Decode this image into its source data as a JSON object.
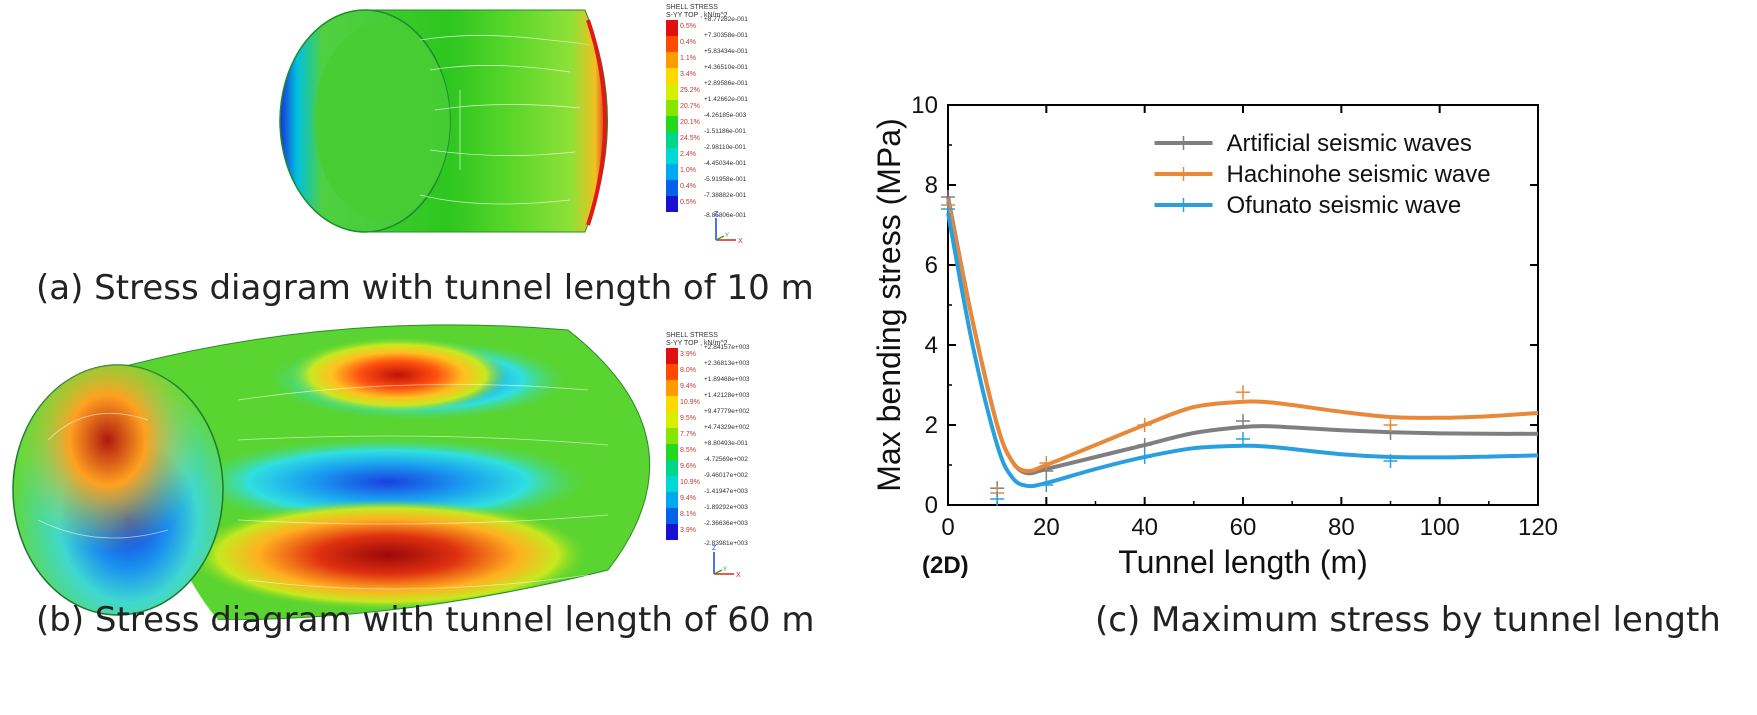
{
  "panels": {
    "a": {
      "caption": "(a) Stress diagram with tunnel length of 10 m",
      "legend": {
        "title_line1": "SHELL STRESS",
        "title_line2": "S-YY TOP , kN/m^2",
        "values": [
          "+8.77282e-001",
          "+7.30358e-001",
          "+5.83434e-001",
          "+4.36510e-001",
          "+2.89586e-001",
          "+1.42662e-001",
          "-4.26185e-003",
          "-1.51186e-001",
          "-2.98110e-001",
          "-4.45034e-001",
          "-5.91958e-001",
          "-7.38882e-001",
          "-8.85806e-001"
        ],
        "percents": [
          "0.5%",
          "0.4%",
          "1.1%",
          "3.4%",
          "25.2%",
          "20.7%",
          "20.1%",
          "24.5%",
          "2.4%",
          "1.0%",
          "0.4%",
          "0.5%"
        ],
        "axis_labels": {
          "z": "Z",
          "y": "Y",
          "x": "X"
        }
      }
    },
    "b": {
      "caption": "(b) Stress diagram with tunnel length of 60 m",
      "legend": {
        "title_line1": "SHELL STRESS",
        "title_line2": "S-YY TOP , kN/m^2",
        "values": [
          "+2.84157e+003",
          "+2.36813e+003",
          "+1.89468e+003",
          "+1.42128e+003",
          "+9.47779e+002",
          "+4.74329e+002",
          "+8.80493e-001",
          "-4.72569e+002",
          "-9.46017e+002",
          "-1.41947e+003",
          "-1.89292e+003",
          "-2.36636e+003",
          "-2.83981e+003"
        ],
        "percents": [
          "3.9%",
          "8.0%",
          "9.4%",
          "10.9%",
          "9.5%",
          "7.7%",
          "8.5%",
          "9.6%",
          "10.9%",
          "9.4%",
          "8.1%",
          "3.9%"
        ],
        "axis_labels": {
          "z": "Z",
          "y": "Y",
          "x": "X"
        }
      }
    },
    "c": {
      "caption": "(c) Maximum stress by tunnel length",
      "extra_label": "(2D)"
    }
  },
  "contour_colors": [
    "#e01010",
    "#ff4a00",
    "#ff9a00",
    "#ffd800",
    "#d8f000",
    "#86e600",
    "#24d820",
    "#00d68a",
    "#00d8d8",
    "#00a8f0",
    "#0062e8",
    "#1a10d0"
  ],
  "chart_data": {
    "type": "line",
    "xlabel": "Tunnel length (m)",
    "ylabel": "Max bending stress (MPa)",
    "xlim": [
      0,
      120
    ],
    "ylim": [
      0,
      10
    ],
    "xticks": [
      0,
      20,
      40,
      60,
      80,
      100,
      120
    ],
    "yticks": [
      0,
      2,
      4,
      6,
      8,
      10
    ],
    "grid": false,
    "legend_position": "top-right",
    "series": [
      {
        "name": "Artificial seismic waves",
        "color": "#7f7f7f",
        "markers": {
          "x": [
            0,
            10,
            20,
            40,
            60,
            90
          ],
          "y": [
            7.7,
            0.42,
            0.85,
            1.5,
            2.1,
            1.8
          ]
        },
        "curve": {
          "x": [
            0,
            5,
            10,
            13,
            16,
            20,
            30,
            40,
            50,
            60,
            65,
            70,
            80,
            90,
            100,
            110,
            120
          ],
          "y": [
            7.7,
            4.6,
            2.0,
            1.1,
            0.8,
            0.9,
            1.2,
            1.5,
            1.8,
            1.95,
            1.97,
            1.94,
            1.87,
            1.82,
            1.79,
            1.78,
            1.78
          ]
        }
      },
      {
        "name": "Hachinohe seismic wave",
        "color": "#e8893a",
        "markers": {
          "x": [
            0,
            10,
            20,
            40,
            60,
            90
          ],
          "y": [
            7.5,
            0.3,
            1.05,
            2.0,
            2.82,
            2.0
          ]
        },
        "curve": {
          "x": [
            0,
            5,
            10,
            13,
            16,
            20,
            30,
            40,
            50,
            60,
            65,
            70,
            80,
            90,
            100,
            110,
            120
          ],
          "y": [
            7.6,
            4.6,
            2.0,
            1.1,
            0.85,
            1.0,
            1.5,
            2.0,
            2.45,
            2.58,
            2.57,
            2.5,
            2.33,
            2.2,
            2.18,
            2.22,
            2.3
          ]
        }
      },
      {
        "name": "Ofunato seismic wave",
        "color": "#2a9fe0",
        "markers": {
          "x": [
            0,
            10,
            20,
            40,
            60,
            90
          ],
          "y": [
            7.4,
            0.15,
            0.5,
            1.2,
            1.65,
            1.1
          ]
        },
        "curve": {
          "x": [
            0,
            5,
            10,
            13,
            16,
            20,
            30,
            40,
            50,
            60,
            65,
            70,
            80,
            90,
            100,
            110,
            120
          ],
          "y": [
            7.3,
            4.0,
            1.5,
            0.7,
            0.48,
            0.55,
            0.9,
            1.2,
            1.42,
            1.48,
            1.46,
            1.4,
            1.27,
            1.2,
            1.19,
            1.21,
            1.24
          ]
        }
      }
    ]
  }
}
